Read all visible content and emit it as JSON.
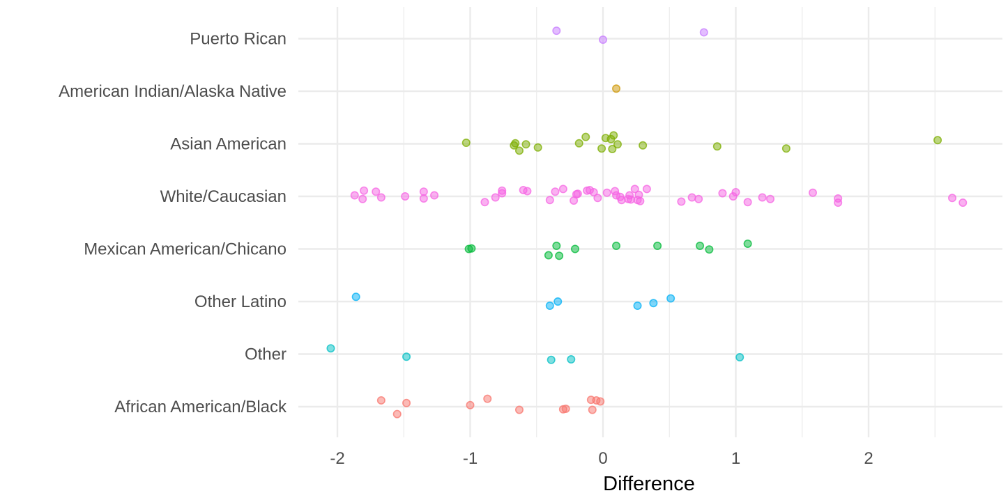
{
  "chart_data": {
    "type": "scatter",
    "title": "",
    "xlabel": "Difference",
    "ylabel": "",
    "xlim": [
      -2.25,
      2.95
    ],
    "x_ticks": [
      -2,
      -1,
      0,
      1,
      2
    ],
    "x_tick_labels": [
      "-2",
      "-1",
      "0",
      "1",
      "2"
    ],
    "categories": [
      "African American/Black",
      "Other",
      "Other Latino",
      "Mexican American/Chicano",
      "White/Caucasian",
      "Asian American",
      "American Indian/Alaska Native",
      "Puerto Rican"
    ],
    "grid": true,
    "legend": "none",
    "series": [
      {
        "name": "African American/Black",
        "color": "#F8766D",
        "points": [
          [
            -1.67,
            0.12
          ],
          [
            -1.48,
            0.07
          ],
          [
            -1.55,
            -0.14
          ],
          [
            -1.0,
            0.03
          ],
          [
            -0.87,
            0.15
          ],
          [
            -0.63,
            -0.06
          ],
          [
            -0.3,
            -0.05
          ],
          [
            -0.28,
            -0.04
          ],
          [
            -0.09,
            0.13
          ],
          [
            -0.05,
            0.12
          ],
          [
            -0.02,
            0.1
          ],
          [
            -0.08,
            -0.06
          ]
        ]
      },
      {
        "name": "Other",
        "color": "#00BFC4",
        "points": [
          [
            -2.05,
            0.11
          ],
          [
            -1.48,
            -0.05
          ],
          [
            -0.39,
            -0.11
          ],
          [
            -0.24,
            -0.1
          ],
          [
            1.03,
            -0.06
          ]
        ]
      },
      {
        "name": "Other Latino",
        "color": "#00B0F6",
        "points": [
          [
            -1.86,
            0.09
          ],
          [
            -0.4,
            -0.08
          ],
          [
            -0.34,
            0.0
          ],
          [
            0.26,
            -0.08
          ],
          [
            0.38,
            -0.03
          ],
          [
            0.51,
            0.06
          ]
        ]
      },
      {
        "name": "Mexican American/Chicano",
        "color": "#00BA38",
        "points": [
          [
            -1.01,
            0.0
          ],
          [
            -0.99,
            0.01
          ],
          [
            -0.35,
            0.06
          ],
          [
            -0.41,
            -0.12
          ],
          [
            -0.33,
            -0.13
          ],
          [
            -0.21,
            0.0
          ],
          [
            0.1,
            0.06
          ],
          [
            0.41,
            0.06
          ],
          [
            0.73,
            0.06
          ],
          [
            0.8,
            -0.01
          ],
          [
            1.09,
            0.1
          ]
        ]
      },
      {
        "name": "White/Caucasian",
        "color": "#F564E3",
        "points": [
          [
            -1.87,
            0.02
          ],
          [
            -1.8,
            0.11
          ],
          [
            -1.81,
            -0.05
          ],
          [
            -1.71,
            0.09
          ],
          [
            -1.67,
            -0.02
          ],
          [
            -1.49,
            0.0
          ],
          [
            -1.35,
            0.09
          ],
          [
            -1.35,
            -0.04
          ],
          [
            -1.27,
            0.02
          ],
          [
            -0.89,
            -0.11
          ],
          [
            -0.81,
            -0.02
          ],
          [
            -0.76,
            0.11
          ],
          [
            -0.76,
            0.06
          ],
          [
            -0.6,
            0.12
          ],
          [
            -0.57,
            0.1
          ],
          [
            -0.4,
            -0.07
          ],
          [
            -0.36,
            0.09
          ],
          [
            -0.3,
            0.14
          ],
          [
            -0.22,
            -0.08
          ],
          [
            -0.2,
            0.04
          ],
          [
            -0.19,
            0.05
          ],
          [
            -0.12,
            0.11
          ],
          [
            -0.1,
            0.12
          ],
          [
            -0.07,
            0.08
          ],
          [
            -0.04,
            -0.03
          ],
          [
            0.03,
            0.07
          ],
          [
            0.09,
            0.1
          ],
          [
            0.1,
            0.02
          ],
          [
            0.13,
            -0.01
          ],
          [
            0.14,
            -0.07
          ],
          [
            0.19,
            -0.05
          ],
          [
            0.2,
            0.02
          ],
          [
            0.21,
            -0.06
          ],
          [
            0.24,
            0.14
          ],
          [
            0.26,
            -0.07
          ],
          [
            0.27,
            0.03
          ],
          [
            0.28,
            -0.09
          ],
          [
            0.33,
            0.14
          ],
          [
            0.59,
            -0.1
          ],
          [
            0.67,
            -0.02
          ],
          [
            0.72,
            -0.05
          ],
          [
            0.9,
            0.06
          ],
          [
            0.98,
            0.0
          ],
          [
            1.0,
            0.08
          ],
          [
            1.09,
            -0.11
          ],
          [
            1.2,
            -0.02
          ],
          [
            1.26,
            -0.05
          ],
          [
            1.58,
            0.07
          ],
          [
            1.77,
            -0.04
          ],
          [
            1.77,
            -0.12
          ],
          [
            2.63,
            -0.03
          ],
          [
            2.71,
            -0.12
          ]
        ]
      },
      {
        "name": "Asian American",
        "color": "#7CAE00",
        "points": [
          [
            -1.03,
            0.02
          ],
          [
            -0.67,
            -0.03
          ],
          [
            -0.66,
            0.01
          ],
          [
            -0.63,
            -0.13
          ],
          [
            -0.58,
            -0.01
          ],
          [
            -0.49,
            -0.07
          ],
          [
            -0.18,
            0.01
          ],
          [
            -0.13,
            0.13
          ],
          [
            0.02,
            0.11
          ],
          [
            0.06,
            0.09
          ],
          [
            0.08,
            0.16
          ],
          [
            0.07,
            -0.1
          ],
          [
            0.11,
            -0.01
          ],
          [
            -0.01,
            -0.09
          ],
          [
            0.3,
            -0.03
          ],
          [
            0.86,
            -0.05
          ],
          [
            1.38,
            -0.09
          ],
          [
            2.52,
            0.07
          ]
        ]
      },
      {
        "name": "American Indian/Alaska Native",
        "color": "#CD9600",
        "points": [
          [
            0.1,
            0.05
          ]
        ]
      },
      {
        "name": "Puerto Rican",
        "color": "#C77CFF",
        "points": [
          [
            -0.35,
            0.15
          ],
          [
            0.0,
            -0.02
          ],
          [
            0.76,
            0.12
          ]
        ]
      }
    ]
  }
}
